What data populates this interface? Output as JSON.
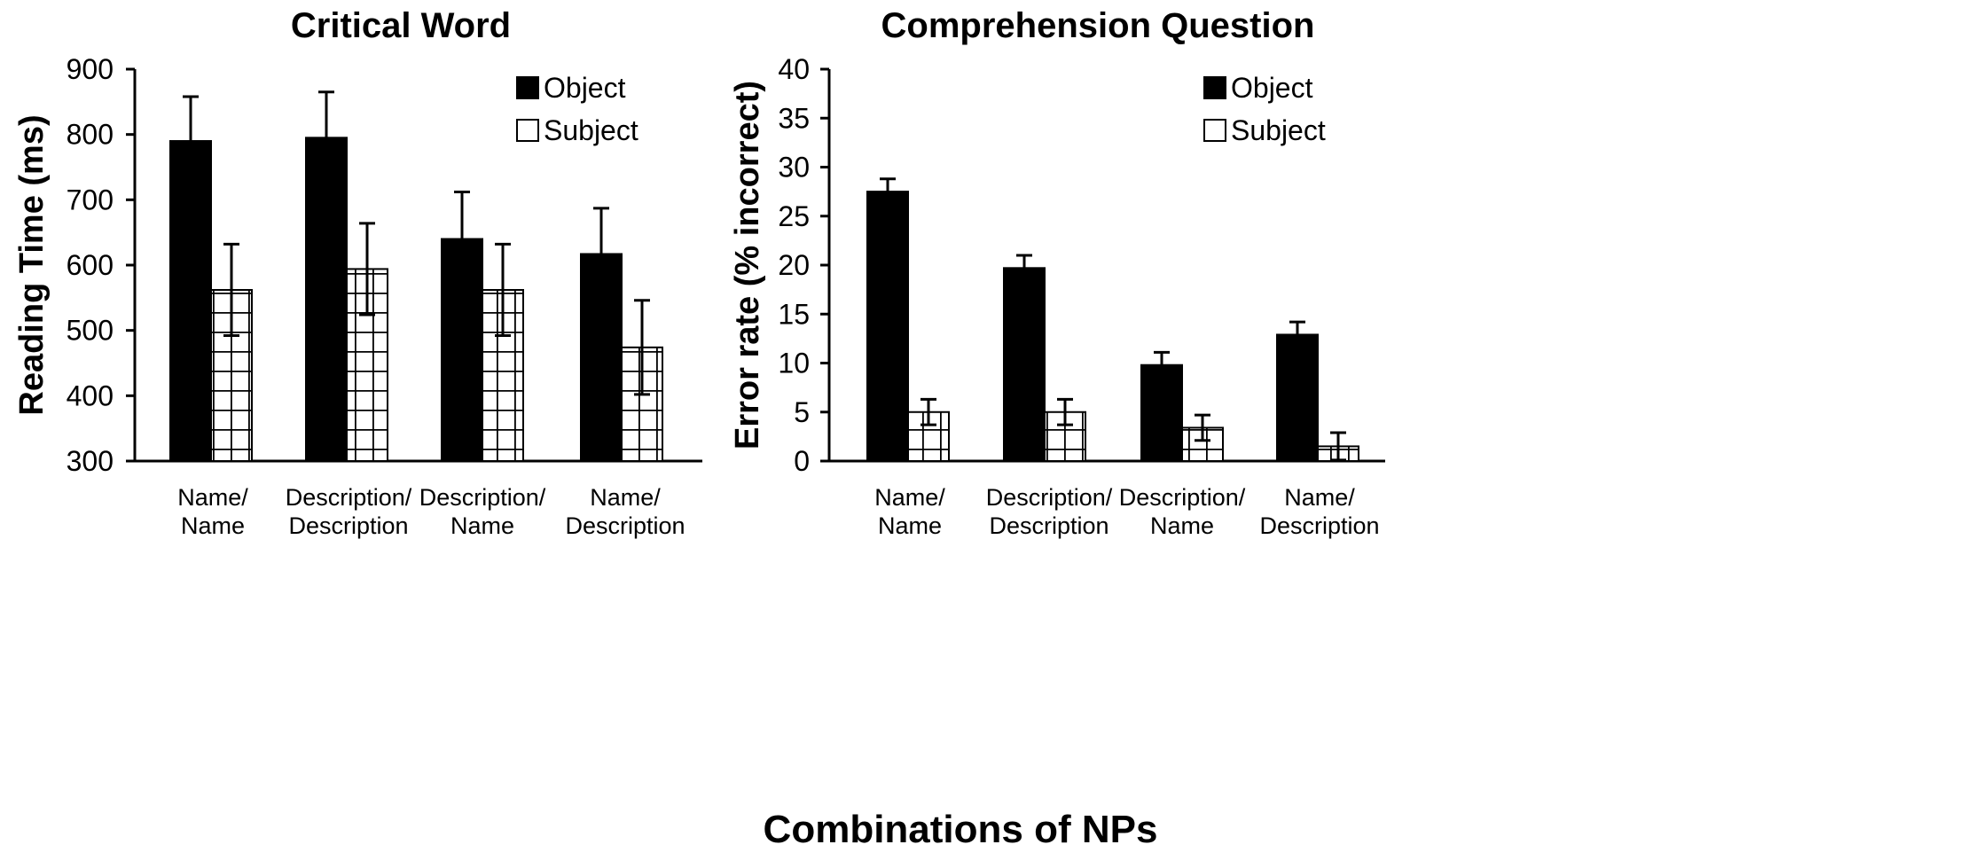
{
  "figure": {
    "shared_xlabel": "Combinations of NPs"
  },
  "chart_data": [
    {
      "type": "bar",
      "title": "Critical Word",
      "xlabel": "",
      "ylabel": "Reading Time (ms)",
      "ylim": [
        300,
        900
      ],
      "yticks": [
        300,
        400,
        500,
        600,
        700,
        800,
        900
      ],
      "categories": [
        [
          "Name/",
          "Name"
        ],
        [
          "Description/",
          "Description"
        ],
        [
          "Description/",
          "Name"
        ],
        [
          "Name/",
          "Description"
        ]
      ],
      "series": [
        {
          "name": "Object",
          "values": [
            790,
            795,
            640,
            617
          ],
          "errors": [
            68,
            70,
            72,
            70
          ],
          "fill": "#000000",
          "pattern": "solid"
        },
        {
          "name": "Subject",
          "values": [
            562,
            594,
            562,
            474
          ],
          "errors": [
            70,
            70,
            70,
            72
          ],
          "fill": "#ffffff",
          "pattern": "grid"
        }
      ],
      "legend": "top-right",
      "grid": false
    },
    {
      "type": "bar",
      "title": "Comprehension Question",
      "xlabel": "",
      "ylabel": "Error rate (% incorrect)",
      "ylim": [
        0,
        40
      ],
      "yticks": [
        0,
        5,
        10,
        15,
        20,
        25,
        30,
        35,
        40
      ],
      "categories": [
        [
          "Name/",
          "Name"
        ],
        [
          "Description/",
          "Description"
        ],
        [
          "Description/",
          "Name"
        ],
        [
          "Name/",
          "Description"
        ]
      ],
      "series": [
        {
          "name": "Object",
          "values": [
            27.5,
            19.7,
            9.8,
            12.9
          ],
          "errors": [
            1.3,
            1.3,
            1.3,
            1.3
          ],
          "fill": "#000000",
          "pattern": "solid"
        },
        {
          "name": "Subject",
          "values": [
            5.0,
            5.0,
            3.4,
            1.5
          ],
          "errors": [
            1.3,
            1.3,
            1.3,
            1.4
          ],
          "fill": "#ffffff",
          "pattern": "grid"
        }
      ],
      "legend": "top-right",
      "grid": false
    }
  ]
}
